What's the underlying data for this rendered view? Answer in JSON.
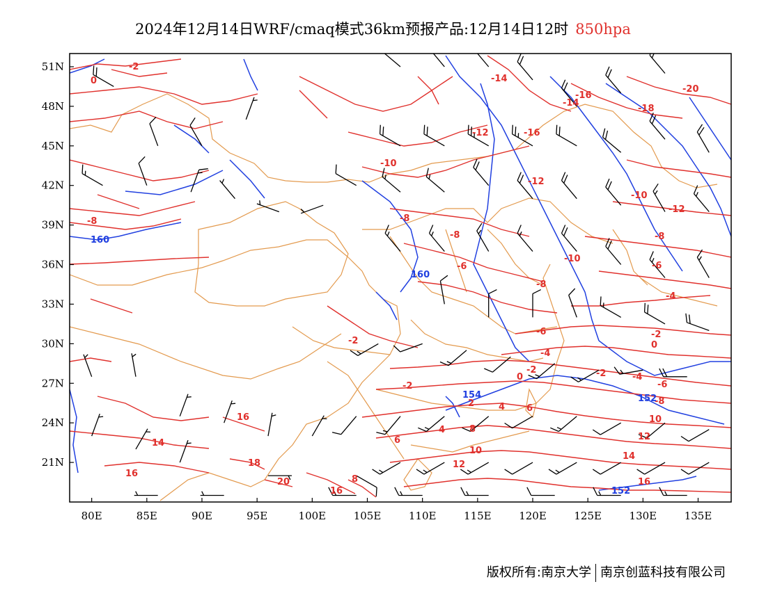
{
  "title": {
    "main": "2024年12月14日WRF/cmaq模式36km预报产品:12月14日12时",
    "level": "850hpa"
  },
  "footer": {
    "copyright_left": "版权所有:南京大学",
    "copyright_right": "南京创蓝科技有限公司"
  },
  "colors": {
    "isotherm": "#e0302c",
    "geopotential": "#2140e0",
    "boundary": "#e39a4e",
    "wind_barb": "#000000"
  },
  "map": {
    "x_ticks": [
      "80E",
      "85E",
      "90E",
      "95E",
      "100E",
      "105E",
      "110E",
      "115E",
      "120E",
      "125E",
      "130E",
      "135E"
    ],
    "y_ticks": [
      "51N",
      "48N",
      "45N",
      "42N",
      "39N",
      "36N",
      "33N",
      "30N",
      "27N",
      "24N",
      "21N"
    ],
    "lon_range": [
      78,
      138
    ],
    "lat_range": [
      18,
      52
    ],
    "temperature_labels": [
      "-2",
      "0",
      "-12",
      "-14",
      "-16",
      "-18",
      "-20",
      "-14",
      "-16",
      "-12",
      "-10",
      "-10",
      "-12",
      "-8",
      "-8",
      "-8",
      "-6",
      "-8",
      "-10",
      "-8",
      "-6",
      "-4",
      "-2",
      "-2",
      "-2",
      "-6",
      "-4",
      "0",
      "-2",
      "0",
      "-2",
      "-4",
      "-6",
      "-8",
      "16",
      "14",
      "16",
      "18",
      "20",
      "16",
      "8",
      "6",
      "4",
      "2",
      "6",
      "4",
      "8",
      "10",
      "12",
      "10",
      "12",
      "14",
      "16"
    ],
    "height_labels": [
      "160",
      "160",
      "154",
      "152",
      "152"
    ],
    "wind_barbs": [
      {
        "lon": 82,
        "lat": 49.5,
        "dir": 300,
        "speed": 20
      },
      {
        "lon": 86,
        "lat": 45,
        "dir": 340,
        "speed": 10
      },
      {
        "lon": 90,
        "lat": 45,
        "dir": 330,
        "speed": 10
      },
      {
        "lon": 94,
        "lat": 47,
        "dir": 20,
        "speed": 5
      },
      {
        "lon": 81,
        "lat": 42,
        "dir": 300,
        "speed": 15
      },
      {
        "lon": 85,
        "lat": 42,
        "dir": 340,
        "speed": 10
      },
      {
        "lon": 89,
        "lat": 41.5,
        "dir": 20,
        "speed": 15
      },
      {
        "lon": 93,
        "lat": 41,
        "dir": 320,
        "speed": 5
      },
      {
        "lon": 97,
        "lat": 40,
        "dir": 290,
        "speed": 5
      },
      {
        "lon": 101,
        "lat": 40.5,
        "dir": 250,
        "speed": 5
      },
      {
        "lon": 104,
        "lat": 42,
        "dir": 300,
        "speed": 10
      },
      {
        "lon": 108,
        "lat": 45,
        "dir": 300,
        "speed": 20
      },
      {
        "lon": 112,
        "lat": 45,
        "dir": 300,
        "speed": 20
      },
      {
        "lon": 116,
        "lat": 45,
        "dir": 300,
        "speed": 25
      },
      {
        "lon": 120,
        "lat": 45,
        "dir": 300,
        "speed": 25
      },
      {
        "lon": 124,
        "lat": 45,
        "dir": 300,
        "speed": 20
      },
      {
        "lon": 128,
        "lat": 44.5,
        "dir": 310,
        "speed": 20
      },
      {
        "lon": 132,
        "lat": 45.5,
        "dir": 320,
        "speed": 20
      },
      {
        "lon": 136,
        "lat": 44.5,
        "dir": 330,
        "speed": 20
      },
      {
        "lon": 108,
        "lat": 51,
        "dir": 310,
        "speed": 15
      },
      {
        "lon": 112,
        "lat": 51,
        "dir": 320,
        "speed": 20
      },
      {
        "lon": 116,
        "lat": 51,
        "dir": 320,
        "speed": 20
      },
      {
        "lon": 120,
        "lat": 50,
        "dir": 320,
        "speed": 20
      },
      {
        "lon": 124,
        "lat": 48,
        "dir": 320,
        "speed": 20
      },
      {
        "lon": 128,
        "lat": 49,
        "dir": 320,
        "speed": 20
      },
      {
        "lon": 132,
        "lat": 50.5,
        "dir": 320,
        "speed": 15
      },
      {
        "lon": 108,
        "lat": 41.5,
        "dir": 310,
        "speed": 15
      },
      {
        "lon": 112,
        "lat": 41.5,
        "dir": 310,
        "speed": 15
      },
      {
        "lon": 116,
        "lat": 42,
        "dir": 320,
        "speed": 20
      },
      {
        "lon": 120,
        "lat": 41,
        "dir": 320,
        "speed": 20
      },
      {
        "lon": 124,
        "lat": 41,
        "dir": 320,
        "speed": 20
      },
      {
        "lon": 128,
        "lat": 40.5,
        "dir": 320,
        "speed": 20
      },
      {
        "lon": 132,
        "lat": 40,
        "dir": 330,
        "speed": 15
      },
      {
        "lon": 136,
        "lat": 40,
        "dir": 320,
        "speed": 15
      },
      {
        "lon": 108,
        "lat": 37,
        "dir": 320,
        "speed": 15
      },
      {
        "lon": 112,
        "lat": 37,
        "dir": 320,
        "speed": 15
      },
      {
        "lon": 116,
        "lat": 37,
        "dir": 330,
        "speed": 15
      },
      {
        "lon": 120,
        "lat": 37,
        "dir": 320,
        "speed": 15
      },
      {
        "lon": 124,
        "lat": 37,
        "dir": 320,
        "speed": 20
      },
      {
        "lon": 128,
        "lat": 36,
        "dir": 320,
        "speed": 20
      },
      {
        "lon": 132,
        "lat": 35,
        "dir": 320,
        "speed": 15
      },
      {
        "lon": 136,
        "lat": 35,
        "dir": 330,
        "speed": 15
      },
      {
        "lon": 112,
        "lat": 33,
        "dir": 350,
        "speed": 10
      },
      {
        "lon": 116,
        "lat": 32,
        "dir": 0,
        "speed": 10
      },
      {
        "lon": 120,
        "lat": 32,
        "dir": 0,
        "speed": 10
      },
      {
        "lon": 124,
        "lat": 32,
        "dir": 340,
        "speed": 10
      },
      {
        "lon": 128,
        "lat": 32,
        "dir": 300,
        "speed": 15
      },
      {
        "lon": 132,
        "lat": 31.5,
        "dir": 300,
        "speed": 20
      },
      {
        "lon": 136,
        "lat": 31,
        "dir": 290,
        "speed": 20
      },
      {
        "lon": 106,
        "lat": 30,
        "dir": 240,
        "speed": 15
      },
      {
        "lon": 110,
        "lat": 30,
        "dir": 250,
        "speed": 10
      },
      {
        "lon": 114,
        "lat": 29.5,
        "dir": 230,
        "speed": 15
      },
      {
        "lon": 118,
        "lat": 29,
        "dir": 230,
        "speed": 10
      },
      {
        "lon": 122,
        "lat": 28.5,
        "dir": 230,
        "speed": 15
      },
      {
        "lon": 126,
        "lat": 28,
        "dir": 240,
        "speed": 15
      },
      {
        "lon": 130,
        "lat": 28,
        "dir": 260,
        "speed": 15
      },
      {
        "lon": 134,
        "lat": 27.5,
        "dir": 270,
        "speed": 20
      },
      {
        "lon": 80,
        "lat": 27.5,
        "dir": 340,
        "speed": 5
      },
      {
        "lon": 84,
        "lat": 27.5,
        "dir": 350,
        "speed": 5
      },
      {
        "lon": 88,
        "lat": 24.5,
        "dir": 20,
        "speed": 5
      },
      {
        "lon": 92,
        "lat": 24,
        "dir": 20,
        "speed": 5
      },
      {
        "lon": 96,
        "lat": 23,
        "dir": 10,
        "speed": 5
      },
      {
        "lon": 100,
        "lat": 23,
        "dir": 30,
        "speed": 5
      },
      {
        "lon": 104,
        "lat": 24.5,
        "dir": 220,
        "speed": 10
      },
      {
        "lon": 108,
        "lat": 24.5,
        "dir": 220,
        "speed": 15
      },
      {
        "lon": 112,
        "lat": 24.5,
        "dir": 230,
        "speed": 15
      },
      {
        "lon": 116,
        "lat": 24.5,
        "dir": 230,
        "speed": 10
      },
      {
        "lon": 120,
        "lat": 24.5,
        "dir": 240,
        "speed": 10
      },
      {
        "lon": 124,
        "lat": 24.5,
        "dir": 230,
        "speed": 15
      },
      {
        "lon": 128,
        "lat": 24,
        "dir": 240,
        "speed": 10
      },
      {
        "lon": 132,
        "lat": 24,
        "dir": 230,
        "speed": 10
      },
      {
        "lon": 136,
        "lat": 23.5,
        "dir": 240,
        "speed": 10
      },
      {
        "lon": 80,
        "lat": 23,
        "dir": 20,
        "speed": 5
      },
      {
        "lon": 84,
        "lat": 22,
        "dir": 30,
        "speed": 5
      },
      {
        "lon": 88,
        "lat": 21,
        "dir": 20,
        "speed": 5
      },
      {
        "lon": 96,
        "lat": 20,
        "dir": 90,
        "speed": 5
      },
      {
        "lon": 104,
        "lat": 20,
        "dir": 120,
        "speed": 10
      },
      {
        "lon": 108,
        "lat": 21,
        "dir": 240,
        "speed": 15
      },
      {
        "lon": 112,
        "lat": 21,
        "dir": 240,
        "speed": 15
      },
      {
        "lon": 116,
        "lat": 21,
        "dir": 240,
        "speed": 15
      },
      {
        "lon": 120,
        "lat": 21,
        "dir": 240,
        "speed": 10
      },
      {
        "lon": 124,
        "lat": 21,
        "dir": 240,
        "speed": 15
      },
      {
        "lon": 128,
        "lat": 21,
        "dir": 240,
        "speed": 10
      },
      {
        "lon": 132,
        "lat": 21,
        "dir": 240,
        "speed": 10
      },
      {
        "lon": 136,
        "lat": 21,
        "dir": 240,
        "speed": 10
      },
      {
        "lon": 104,
        "lat": 18.5,
        "dir": 270,
        "speed": 15
      },
      {
        "lon": 110,
        "lat": 18.5,
        "dir": 270,
        "speed": 15
      },
      {
        "lon": 116,
        "lat": 18.5,
        "dir": 270,
        "speed": 15
      },
      {
        "lon": 122,
        "lat": 18.5,
        "dir": 270,
        "speed": 10
      },
      {
        "lon": 128,
        "lat": 18.5,
        "dir": 270,
        "speed": 15
      },
      {
        "lon": 134,
        "lat": 18.5,
        "dir": 270,
        "speed": 15
      },
      {
        "lon": 86,
        "lat": 18.5,
        "dir": 270,
        "speed": 5
      },
      {
        "lon": 92,
        "lat": 18.5,
        "dir": 270,
        "speed": 5
      }
    ]
  }
}
